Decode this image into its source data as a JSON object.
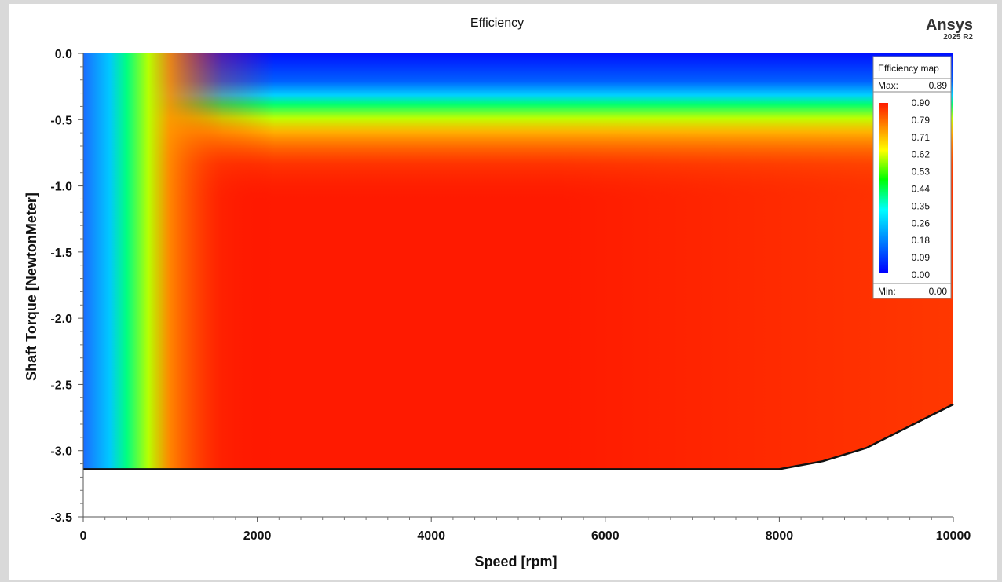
{
  "brand": {
    "name": "Ansys",
    "version": "2025 R2"
  },
  "chart_data": {
    "type": "heatmap",
    "title": "Efficiency",
    "xlabel": "Speed [rpm]",
    "ylabel": "Shaft Torque [NewtonMeter]",
    "xlim": [
      0,
      10000
    ],
    "ylim": [
      -3.5,
      0.0
    ],
    "x_ticks": [
      0,
      2000,
      4000,
      6000,
      8000,
      10000
    ],
    "x_tick_labels": [
      "0",
      "2000",
      "4000",
      "6000",
      "8000",
      "10000"
    ],
    "y_ticks": [
      0.0,
      -0.5,
      -1.0,
      -1.5,
      -2.0,
      -2.5,
      -3.0,
      -3.5
    ],
    "y_tick_labels": [
      "0.0",
      "-0.5",
      "-1.0",
      "-1.5",
      "-2.0",
      "-2.5",
      "-3.0",
      "-3.5"
    ],
    "grid": false,
    "boundary": {
      "x": [
        0,
        8000,
        8500,
        9000,
        10000
      ],
      "y": [
        -3.14,
        -3.14,
        -3.08,
        -2.98,
        -2.65
      ]
    },
    "efficiency_samples": [
      {
        "speed": 0,
        "torque": -1.5,
        "efficiency": 0.09
      },
      {
        "speed": 200,
        "torque": -1.5,
        "efficiency": 0.35
      },
      {
        "speed": 400,
        "torque": -1.5,
        "efficiency": 0.62
      },
      {
        "speed": 800,
        "torque": -1.5,
        "efficiency": 0.8
      },
      {
        "speed": 3000,
        "torque": -2.0,
        "efficiency": 0.89
      },
      {
        "speed": 6000,
        "torque": -0.05,
        "efficiency": 0.05
      },
      {
        "speed": 6000,
        "torque": -0.45,
        "efficiency": 0.44
      },
      {
        "speed": 6000,
        "torque": -0.8,
        "efficiency": 0.71
      },
      {
        "speed": 9500,
        "torque": -2.0,
        "efficiency": 0.84
      }
    ],
    "legend": {
      "title": "Efficiency map",
      "max_label": "Max:",
      "max_value": "0.89",
      "min_label": "Min:",
      "min_value": "0.00",
      "placement": "top-right",
      "levels": [
        "0.90",
        "0.79",
        "0.71",
        "0.62",
        "0.53",
        "0.44",
        "0.35",
        "0.26",
        "0.18",
        "0.09",
        "0.00"
      ],
      "colors": [
        "#ff0000",
        "#ff8000",
        "#ffff00",
        "#00ff00",
        "#00ffff",
        "#0000ff"
      ]
    }
  }
}
